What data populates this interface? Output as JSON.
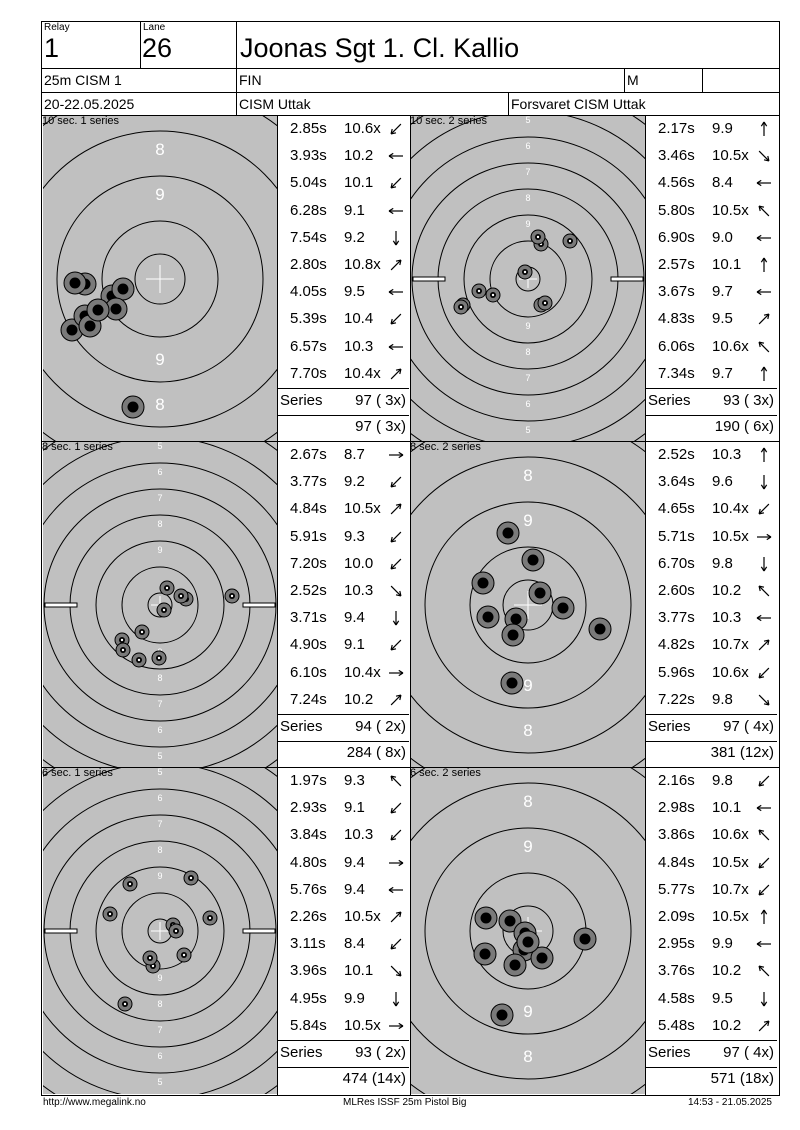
{
  "header": {
    "relay_label": "Relay",
    "relay": "1",
    "lane_label": "Lane",
    "lane": "26",
    "name": "Joonas Sgt 1. Cl. Kallio",
    "event": "25m CISM 1",
    "nation": "FIN",
    "gender": "M",
    "date": "20-22.05.2025",
    "club": "CISM Uttak",
    "team": "Forsvaret CISM Uttak"
  },
  "series_label": "Series",
  "panels": [
    {
      "label": "10 sec. 1 series",
      "style": "big",
      "shots": [
        {
          "t": "2.85s",
          "s": "10.6x",
          "dir": "sw"
        },
        {
          "t": "3.93s",
          "s": "10.2",
          "dir": "w"
        },
        {
          "t": "5.04s",
          "s": "10.1",
          "dir": "sw"
        },
        {
          "t": "6.28s",
          "s": "9.1",
          "dir": "w"
        },
        {
          "t": "7.54s",
          "s": "9.2",
          "dir": "s"
        },
        {
          "t": "2.80s",
          "s": "10.8x",
          "dir": "ne"
        },
        {
          "t": "4.05s",
          "s": "9.5",
          "dir": "w"
        },
        {
          "t": "5.39s",
          "s": "10.4",
          "dir": "sw"
        },
        {
          "t": "6.57s",
          "s": "10.3",
          "dir": "w"
        },
        {
          "t": "7.70s",
          "s": "10.4x",
          "dir": "ne"
        }
      ],
      "series": "97 ( 3x)",
      "total": "97 ( 3x)",
      "holes": [
        [
          -48,
          -17
        ],
        [
          -37,
          -10
        ],
        [
          -75,
          -5
        ],
        [
          -85,
          -4
        ],
        [
          -88,
          -51
        ],
        [
          -44,
          -30
        ],
        [
          -75,
          -37
        ],
        [
          -70,
          -47
        ],
        [
          -62,
          -31
        ],
        [
          -27,
          -128
        ]
      ]
    },
    {
      "label": "10 sec. 2 series",
      "style": "small",
      "shots": [
        {
          "t": "2.17s",
          "s": "9.9",
          "dir": "n"
        },
        {
          "t": "3.46s",
          "s": "10.5x",
          "dir": "se"
        },
        {
          "t": "4.56s",
          "s": "8.4",
          "dir": "w"
        },
        {
          "t": "5.80s",
          "s": "10.5x",
          "dir": "nw"
        },
        {
          "t": "6.90s",
          "s": "9.0",
          "dir": "w"
        },
        {
          "t": "2.57s",
          "s": "10.1",
          "dir": "n"
        },
        {
          "t": "3.67s",
          "s": "9.7",
          "dir": "w"
        },
        {
          "t": "4.83s",
          "s": "9.5",
          "dir": "ne"
        },
        {
          "t": "6.06s",
          "s": "10.6x",
          "dir": "nw"
        },
        {
          "t": "7.34s",
          "s": "9.7",
          "dir": "n"
        }
      ],
      "series": "93 ( 3x)",
      "total": "190 ( 6x)",
      "holes": [
        [
          42,
          38
        ],
        [
          13,
          -26
        ],
        [
          -65,
          -26
        ],
        [
          -49,
          -12
        ],
        [
          -67,
          -28
        ],
        [
          -3,
          7
        ],
        [
          13,
          35
        ],
        [
          10,
          42
        ],
        [
          17,
          -24
        ],
        [
          -35,
          -16
        ]
      ]
    },
    {
      "label": "8 sec. 1 series",
      "style": "small",
      "shots": [
        {
          "t": "2.67s",
          "s": "8.7",
          "dir": "e"
        },
        {
          "t": "3.77s",
          "s": "9.2",
          "dir": "sw"
        },
        {
          "t": "4.84s",
          "s": "10.5x",
          "dir": "ne"
        },
        {
          "t": "5.91s",
          "s": "9.3",
          "dir": "sw"
        },
        {
          "t": "7.20s",
          "s": "10.0",
          "dir": "sw"
        },
        {
          "t": "2.52s",
          "s": "10.3",
          "dir": "se"
        },
        {
          "t": "3.71s",
          "s": "9.4",
          "dir": "s"
        },
        {
          "t": "4.90s",
          "s": "9.1",
          "dir": "sw"
        },
        {
          "t": "6.10s",
          "s": "10.4x",
          "dir": "e"
        },
        {
          "t": "7.24s",
          "s": "10.2",
          "dir": "ne"
        }
      ],
      "series": "94 ( 2x)",
      "total": "284 ( 8x)",
      "holes": [
        [
          72,
          9
        ],
        [
          -38,
          -35
        ],
        [
          26,
          6
        ],
        [
          -37,
          -45
        ],
        [
          -1,
          -53
        ],
        [
          7,
          17
        ],
        [
          4,
          -5
        ],
        [
          -18,
          -27
        ],
        [
          -21,
          -55
        ],
        [
          21,
          9
        ]
      ]
    },
    {
      "label": "8 sec. 2 series",
      "style": "big",
      "shots": [
        {
          "t": "2.52s",
          "s": "10.3",
          "dir": "n"
        },
        {
          "t": "3.64s",
          "s": "9.6",
          "dir": "s"
        },
        {
          "t": "4.65s",
          "s": "10.4x",
          "dir": "sw"
        },
        {
          "t": "5.71s",
          "s": "10.5x",
          "dir": "e"
        },
        {
          "t": "6.70s",
          "s": "9.8",
          "dir": "s"
        },
        {
          "t": "2.60s",
          "s": "10.2",
          "dir": "nw"
        },
        {
          "t": "3.77s",
          "s": "10.3",
          "dir": "w"
        },
        {
          "t": "4.82s",
          "s": "10.7x",
          "dir": "ne"
        },
        {
          "t": "5.96s",
          "s": "10.6x",
          "dir": "sw"
        },
        {
          "t": "7.22s",
          "s": "9.8",
          "dir": "se"
        }
      ],
      "series": "97 ( 4x)",
      "total": "381 (12x)",
      "holes": [
        [
          -20,
          72
        ],
        [
          5,
          45
        ],
        [
          -45,
          22
        ],
        [
          12,
          12
        ],
        [
          35,
          -3
        ],
        [
          -12,
          -14
        ],
        [
          -40,
          -12
        ],
        [
          -15,
          -30
        ],
        [
          -16,
          -78
        ],
        [
          72,
          -24
        ]
      ]
    },
    {
      "label": "6 sec. 1 series",
      "style": "small",
      "shots": [
        {
          "t": "1.97s",
          "s": "9.3",
          "dir": "nw"
        },
        {
          "t": "2.93s",
          "s": "9.1",
          "dir": "sw"
        },
        {
          "t": "3.84s",
          "s": "10.3",
          "dir": "sw"
        },
        {
          "t": "4.80s",
          "s": "9.4",
          "dir": "e"
        },
        {
          "t": "5.76s",
          "s": "9.4",
          "dir": "w"
        },
        {
          "t": "2.26s",
          "s": "10.5x",
          "dir": "ne"
        },
        {
          "t": "3.11s",
          "s": "8.4",
          "dir": "sw"
        },
        {
          "t": "3.96s",
          "s": "10.1",
          "dir": "se"
        },
        {
          "t": "4.95s",
          "s": "9.9",
          "dir": "s"
        },
        {
          "t": "5.84s",
          "s": "10.5x",
          "dir": "e"
        }
      ],
      "series": "93 ( 2x)",
      "total": "474 (14x)",
      "holes": [
        [
          -30,
          47
        ],
        [
          -50,
          17
        ],
        [
          31,
          53
        ],
        [
          50,
          13
        ],
        [
          -7,
          -35
        ],
        [
          13,
          6
        ],
        [
          16,
          0
        ],
        [
          -10,
          -27
        ],
        [
          -35,
          -73
        ],
        [
          24,
          -24
        ]
      ]
    },
    {
      "label": "6 sec. 2 series",
      "style": "big",
      "shots": [
        {
          "t": "2.16s",
          "s": "9.8",
          "dir": "sw"
        },
        {
          "t": "2.98s",
          "s": "10.1",
          "dir": "w"
        },
        {
          "t": "3.86s",
          "s": "10.6x",
          "dir": "nw"
        },
        {
          "t": "4.84s",
          "s": "10.5x",
          "dir": "sw"
        },
        {
          "t": "5.77s",
          "s": "10.7x",
          "dir": "sw"
        },
        {
          "t": "2.09s",
          "s": "10.5x",
          "dir": "n"
        },
        {
          "t": "2.95s",
          "s": "9.9",
          "dir": "w"
        },
        {
          "t": "3.76s",
          "s": "10.2",
          "dir": "nw"
        },
        {
          "t": "4.58s",
          "s": "9.5",
          "dir": "s"
        },
        {
          "t": "5.48s",
          "s": "10.2",
          "dir": "ne"
        }
      ],
      "series": "97 ( 4x)",
      "total": "571 (18x)",
      "holes": [
        [
          -42,
          13
        ],
        [
          -18,
          10
        ],
        [
          -4,
          -19
        ],
        [
          -3,
          -2
        ],
        [
          -26,
          -84
        ],
        [
          -13,
          -34
        ],
        [
          -43,
          -23
        ],
        [
          14,
          -27
        ],
        [
          0,
          -11
        ],
        [
          57,
          -8
        ]
      ]
    }
  ],
  "footer": {
    "left": "http://www.megalink.no",
    "center": "MLRes ISSF 25m Pistol Big",
    "right": "14:53 - 21.05.2025"
  }
}
